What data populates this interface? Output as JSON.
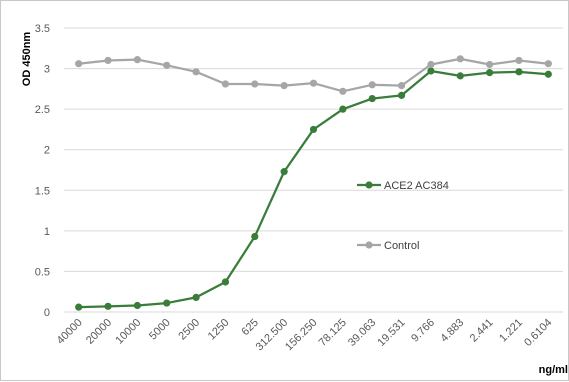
{
  "chart_data": {
    "type": "line",
    "title": "",
    "xlabel": "ng/ml",
    "ylabel": "OD 450nm",
    "ylim": [
      0,
      3.5
    ],
    "y_ticks": [
      "0",
      "0.5",
      "1",
      "1.5",
      "2",
      "2.5",
      "3",
      "3.5"
    ],
    "y_tick_values": [
      0,
      0.5,
      1,
      1.5,
      2,
      2.5,
      3,
      3.5
    ],
    "grid": true,
    "legend_placement": "center-right",
    "categories": [
      "40000",
      "20000",
      "10000",
      "5000",
      "2500",
      "1250",
      "625",
      "312.500",
      "156.250",
      "78.125",
      "39.063",
      "19.531",
      "9.766",
      "4.883",
      "2.441",
      "1.221",
      "0.6104"
    ],
    "series": [
      {
        "name": "ACE2 AC384",
        "color": "#3a7d3a",
        "values": [
          0.06,
          0.07,
          0.08,
          0.11,
          0.18,
          0.37,
          0.93,
          1.73,
          2.25,
          2.5,
          2.63,
          2.67,
          2.97,
          2.91,
          2.95,
          2.96,
          2.93
        ]
      },
      {
        "name": "Control",
        "color": "#a6a6a6",
        "values": [
          3.06,
          3.1,
          3.11,
          3.04,
          2.96,
          2.81,
          2.81,
          2.79,
          2.82,
          2.72,
          2.8,
          2.79,
          3.05,
          3.12,
          3.05,
          3.1,
          3.06
        ]
      }
    ]
  }
}
